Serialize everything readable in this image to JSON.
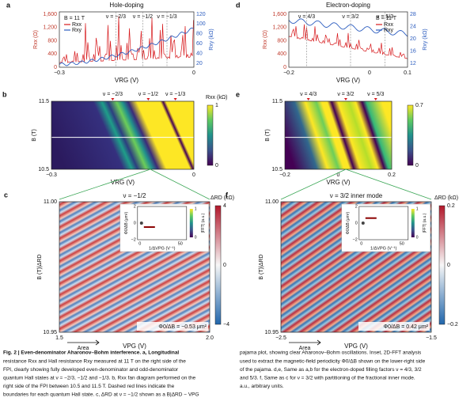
{
  "figure": {
    "a": {
      "label": "a",
      "title": "Hole-doping",
      "field": "B = 11 T",
      "legend": [
        "Rxx",
        "Rxy"
      ],
      "ylabel": "Rxx (Ω)",
      "y2label": "Rxy (kΩ)",
      "xlabel": "VRG (V)",
      "nu": [
        "ν = −2/3",
        "ν = −1/2",
        "ν = −1/3"
      ],
      "xticks": [
        "−0.3",
        "0"
      ],
      "yticks": [
        "0",
        "400",
        "800",
        "1,200",
        "1,600"
      ],
      "y2ticks": [
        "20",
        "40",
        "60",
        "80",
        "100",
        "120"
      ]
    },
    "d": {
      "label": "d",
      "title": "Electron-doping",
      "field": "B = 11 T",
      "legend": [
        "Rxx",
        "Rxy"
      ],
      "ylabel": "Rxx (Ω)",
      "y2label": "Rxy (kΩ)",
      "xlabel": "VRG (V)",
      "nu": [
        "ν = 4/3",
        "ν = 3/2",
        "ν = 5/3"
      ],
      "xticks": [
        "−0.2",
        "0",
        "0.1"
      ],
      "yticks": [
        "0",
        "400",
        "800",
        "1,200",
        "1,600"
      ],
      "y2ticks": [
        "12",
        "16",
        "20",
        "24",
        "28"
      ]
    },
    "b": {
      "label": "b",
      "nu": [
        "ν = −2/3",
        "ν = −1/2",
        "ν = −1/3"
      ],
      "ylabel": "B (T)",
      "xlabel": "VRG (V)",
      "yticks": [
        "10.5",
        "11.5"
      ],
      "xticks": [
        "−0.3",
        "0"
      ],
      "cbar_label": "Rxx (kΩ)",
      "cbar_ticks": [
        "0",
        "1"
      ]
    },
    "e": {
      "label": "e",
      "nu": [
        "ν = 4/3",
        "ν = 3/2",
        "ν = 5/3"
      ],
      "ylabel": "B (T)",
      "xlabel": "VRG (V)",
      "yticks": [
        "10.5",
        "11.5"
      ],
      "xticks": [
        "−0.2",
        "0",
        "0.2"
      ],
      "cbar_ticks": [
        "0",
        "0.7"
      ]
    },
    "c": {
      "label": "c",
      "title": "ν = −1/2",
      "ylabel": "B (T)|ΔRD",
      "xlabel": "VPG (V)",
      "yticks": [
        "10.95",
        "11.00"
      ],
      "xticks": [
        "1.5",
        "2.0"
      ],
      "cbar_label": "ΔRD (kΩ)",
      "cbar_ticks": [
        "−4",
        "0",
        "4"
      ],
      "period": "Φ0/ΔB = −0.53 μm²",
      "arrow": "Area",
      "inset": {
        "ylabel": "Φ0/ΔB (μm²)",
        "xlabel": "1/ΔVPG (V⁻¹)",
        "xticks": [
          "0",
          "50"
        ],
        "yticks": [
          "−2",
          "0",
          "2"
        ],
        "cbar_label": "|FFT| (a.u.)",
        "cbar_ticks": [
          "0",
          "1"
        ]
      }
    },
    "f": {
      "label": "f",
      "title": "ν = 3/2 inner mode",
      "ylabel": "B (T)|ΔRD",
      "xlabel": "VPG (V)",
      "yticks": [
        "10.95",
        "11.00"
      ],
      "xticks": [
        "−2.5",
        "−1.5"
      ],
      "cbar_label": "ΔRD (kΩ)",
      "cbar_ticks": [
        "−0.2",
        "0",
        "0.2"
      ],
      "period": "Φ0/ΔB = 0.42 μm²",
      "arrow": "Area",
      "inset": {
        "ylabel": "Φ0/ΔB (μm²)",
        "xlabel": "1/ΔVPG (V⁻¹)",
        "xticks": [
          "0",
          "50"
        ],
        "yticks": [
          "−2",
          "0",
          "2"
        ],
        "cbar_label": "|FFT| (a.u.)",
        "cbar_ticks": [
          "0",
          "1"
        ]
      }
    }
  },
  "caption": {
    "left": [
      "Fig. 2 | Even-denominator Aharonov–Bohm interference. a, Longitudinal",
      "resistance Rxx and Hall resistance Rxy measured at 11 T on the right side of the",
      "FPI, clearly showing fully developed even-denominator and odd-denominator",
      "quantum Hall states at ν = −2/3, −1/2 and −1/3. b, Rxx fan diagram performed on the",
      "right side of the FPI between 10.5 and 11.5 T. Dashed red lines indicate the",
      "boundaries for each quantum Hall state. c, ΔRD at ν = −1/2 shown as a B|ΔRD − VPG"
    ],
    "right": [
      "pajama plot, showing clear Aharonov–Bohm oscillations. Inset, 2D-FFT analysis",
      "used to extract the magnetic-field periodicity Φ0/ΔB shown on the lower-right side",
      "of the pajama. d,e, Same as a,b for the electron-doped filling factors ν = 4/3, 3/2",
      "and 5/3. f, Same as c for ν = 3/2 with partitioning of the fractional inner mode.",
      "a.u., arbitrary units."
    ]
  }
}
